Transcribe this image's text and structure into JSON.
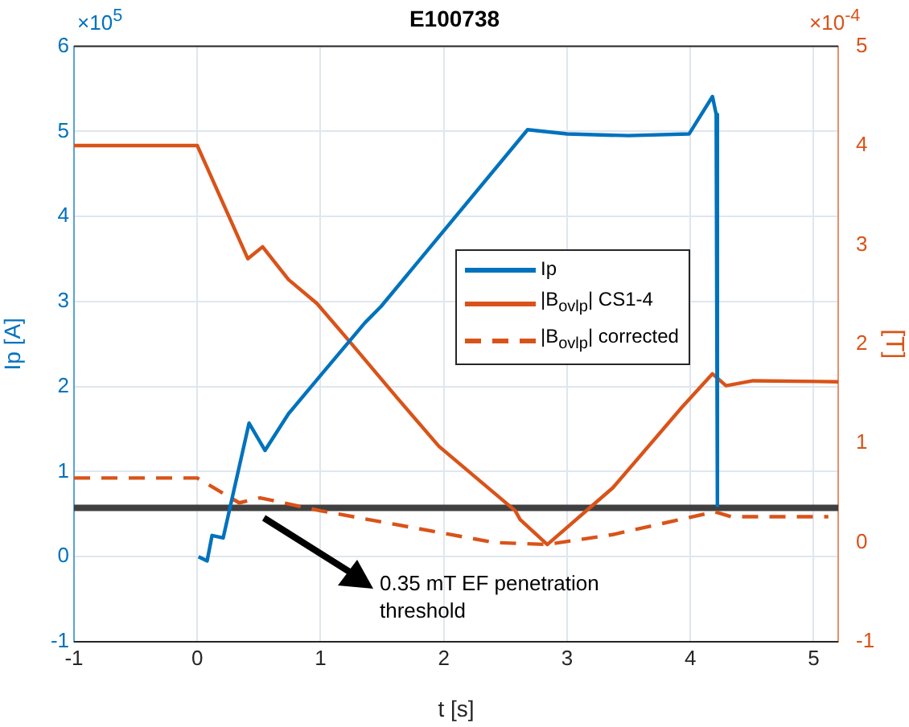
{
  "chart_data": {
    "type": "line",
    "title": "E100738",
    "xlabel": "t [s]",
    "ylabel": "Ip [A]",
    "y2label": "[T]",
    "xlim": [
      -1,
      5.2
    ],
    "xticks": [
      -1,
      0,
      1,
      2,
      3,
      4,
      5
    ],
    "ylim": [
      -1,
      6
    ],
    "yticks": [
      -1,
      0,
      1,
      2,
      3,
      4,
      5,
      6
    ],
    "y2lim": [
      -1,
      5
    ],
    "y2ticks": [
      -1,
      0,
      1,
      2,
      3,
      4,
      5
    ],
    "grid": true,
    "legend": "right",
    "line_style": "solid",
    "marker": "none",
    "series": [
      {
        "name": "Ip",
        "color": "#0072bd",
        "x": [
          0.01,
          0.08,
          0.12,
          0.21,
          0.42,
          0.55,
          0.74,
          1.0,
          1.36,
          1.49,
          2.68,
          3.0,
          3.5,
          3.99,
          4.18,
          4.21,
          4.22
        ],
        "values": [
          0,
          -0.05,
          0.25,
          0.22,
          1.57,
          1.25,
          1.68,
          2.13,
          2.75,
          2.94,
          5.02,
          4.97,
          4.95,
          4.97,
          5.41,
          5.2,
          0.6
        ]
      },
      {
        "name": "|B$_{ovlp}$| CS1-4",
        "color": "#d95319",
        "axis": "y2",
        "x": [
          -1,
          0,
          0.41,
          0.53,
          0.74,
          0.97,
          1.24,
          1.62,
          1.96,
          2.58,
          2.62,
          2.84,
          3.37,
          3.93,
          4.18,
          4.29,
          4.51,
          5.2
        ],
        "values": [
          4.0,
          4.0,
          2.86,
          2.98,
          2.65,
          2.41,
          2.02,
          1.46,
          0.97,
          0.32,
          0.23,
          -0.02,
          0.55,
          1.36,
          1.7,
          1.58,
          1.63,
          1.62
        ]
      },
      {
        "name": "|B$_{ovlp}$| corrected",
        "color": "#d95319",
        "axis": "y2",
        "line_style": "dashed",
        "x": [
          -1,
          0,
          0.34,
          0.51,
          1.0,
          2.41,
          2.84,
          3.37,
          4.2,
          4.33,
          5.12
        ],
        "values": [
          0.65,
          0.65,
          0.4,
          0.45,
          0.32,
          0.0,
          -0.02,
          0.08,
          0.31,
          0.26,
          0.26
        ]
      }
    ],
    "ref_lines": [
      {
        "axis": "y2",
        "value": 0.35,
        "color": "#404040"
      }
    ],
    "annotations": [
      "×10$^{5}$",
      "×10$^{-4}$",
      "0.35 mT EF penetration threshold"
    ]
  }
}
